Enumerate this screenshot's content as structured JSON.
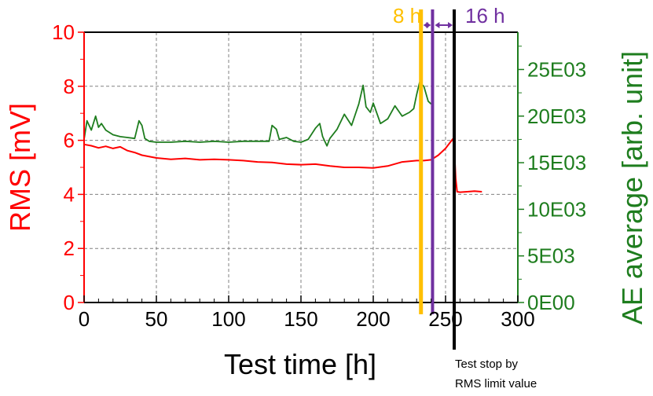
{
  "chart_data": {
    "type": "line",
    "xlabel": "Test time [h]",
    "ylabel_left": "RMS [mV]",
    "ylabel_right": "AE average [arb. unit]",
    "xlim": [
      0,
      300
    ],
    "ylim_left": [
      0,
      10
    ],
    "ylim_right": [
      0,
      29000
    ],
    "x_ticks": [
      0,
      50,
      100,
      150,
      200,
      250,
      300
    ],
    "x_tick_labels": [
      "0",
      "50",
      "100",
      "150",
      "200",
      "250",
      "300"
    ],
    "y_left_ticks": [
      0,
      2,
      4,
      6,
      8,
      10
    ],
    "y_left_tick_labels": [
      "0",
      "2",
      "4",
      "6",
      "8",
      "10"
    ],
    "y_right_ticks": [
      0,
      5000,
      10000,
      15000,
      20000,
      25000
    ],
    "y_right_tick_labels": [
      "0E00",
      "5E03",
      "10E03",
      "15E03",
      "20E03",
      "25E03"
    ],
    "grid": true,
    "colors": {
      "rms": "#ff0000",
      "ae": "#1e7d1e",
      "line_8h": "#ffc000",
      "line_16h": "#7030a0",
      "stop_line": "#000000"
    },
    "series": [
      {
        "axis": "left",
        "x": [
          0,
          5,
          10,
          15,
          20,
          25,
          30,
          35,
          40,
          50,
          60,
          70,
          80,
          90,
          100,
          110,
          120,
          130,
          140,
          150,
          160,
          170,
          180,
          190,
          200,
          210,
          220,
          230,
          235,
          240,
          245,
          250,
          255,
          256
        ],
        "values": [
          5.85,
          5.8,
          5.72,
          5.78,
          5.7,
          5.76,
          5.62,
          5.55,
          5.45,
          5.35,
          5.3,
          5.33,
          5.28,
          5.3,
          5.28,
          5.25,
          5.2,
          5.18,
          5.12,
          5.1,
          5.12,
          5.05,
          5.0,
          5.0,
          4.98,
          5.05,
          5.2,
          5.25,
          5.25,
          5.28,
          5.45,
          5.7,
          6.05,
          5.8
        ]
      },
      {
        "axis": "left",
        "x": [
          256,
          257,
          258,
          260,
          265,
          270,
          275
        ],
        "values": [
          5.75,
          4.6,
          4.1,
          4.08,
          4.1,
          4.12,
          4.1
        ]
      },
      {
        "axis": "right",
        "x": [
          0,
          2,
          5,
          8,
          10,
          12,
          15,
          18,
          20,
          25,
          30,
          35,
          38,
          40,
          42,
          45,
          50,
          60,
          70,
          80,
          90,
          100,
          110,
          120,
          128,
          130,
          133,
          135,
          140,
          145,
          150,
          155,
          160,
          163,
          165,
          168,
          170,
          175,
          180,
          185,
          190,
          193,
          195,
          198,
          200,
          205,
          210,
          215,
          220,
          225,
          228,
          230,
          232,
          235,
          238,
          240
        ],
        "values": [
          17500,
          19500,
          18500,
          20000,
          18800,
          19200,
          18500,
          18200,
          18000,
          17800,
          17700,
          17600,
          19500,
          19000,
          17600,
          17300,
          17200,
          17200,
          17300,
          17200,
          17300,
          17200,
          17300,
          17300,
          17300,
          19000,
          18600,
          17500,
          17700,
          17300,
          17200,
          17500,
          18700,
          19200,
          17800,
          16800,
          17600,
          18600,
          20200,
          19000,
          21300,
          23300,
          21000,
          20400,
          21400,
          19200,
          19700,
          21100,
          20000,
          20400,
          20800,
          22300,
          23600,
          23200,
          21600,
          21300
        ]
      }
    ],
    "vertical_lines": [
      {
        "x": 233,
        "label": "8 h"
      },
      {
        "x": 241,
        "label": "16 h"
      },
      {
        "x": 256,
        "label": "Test stop by\nRMS limit value"
      }
    ],
    "annotations": {
      "label_8h": "8 h",
      "label_16h": "16 h",
      "stop_line1": "Test stop by",
      "stop_line2": "RMS limit value"
    }
  }
}
